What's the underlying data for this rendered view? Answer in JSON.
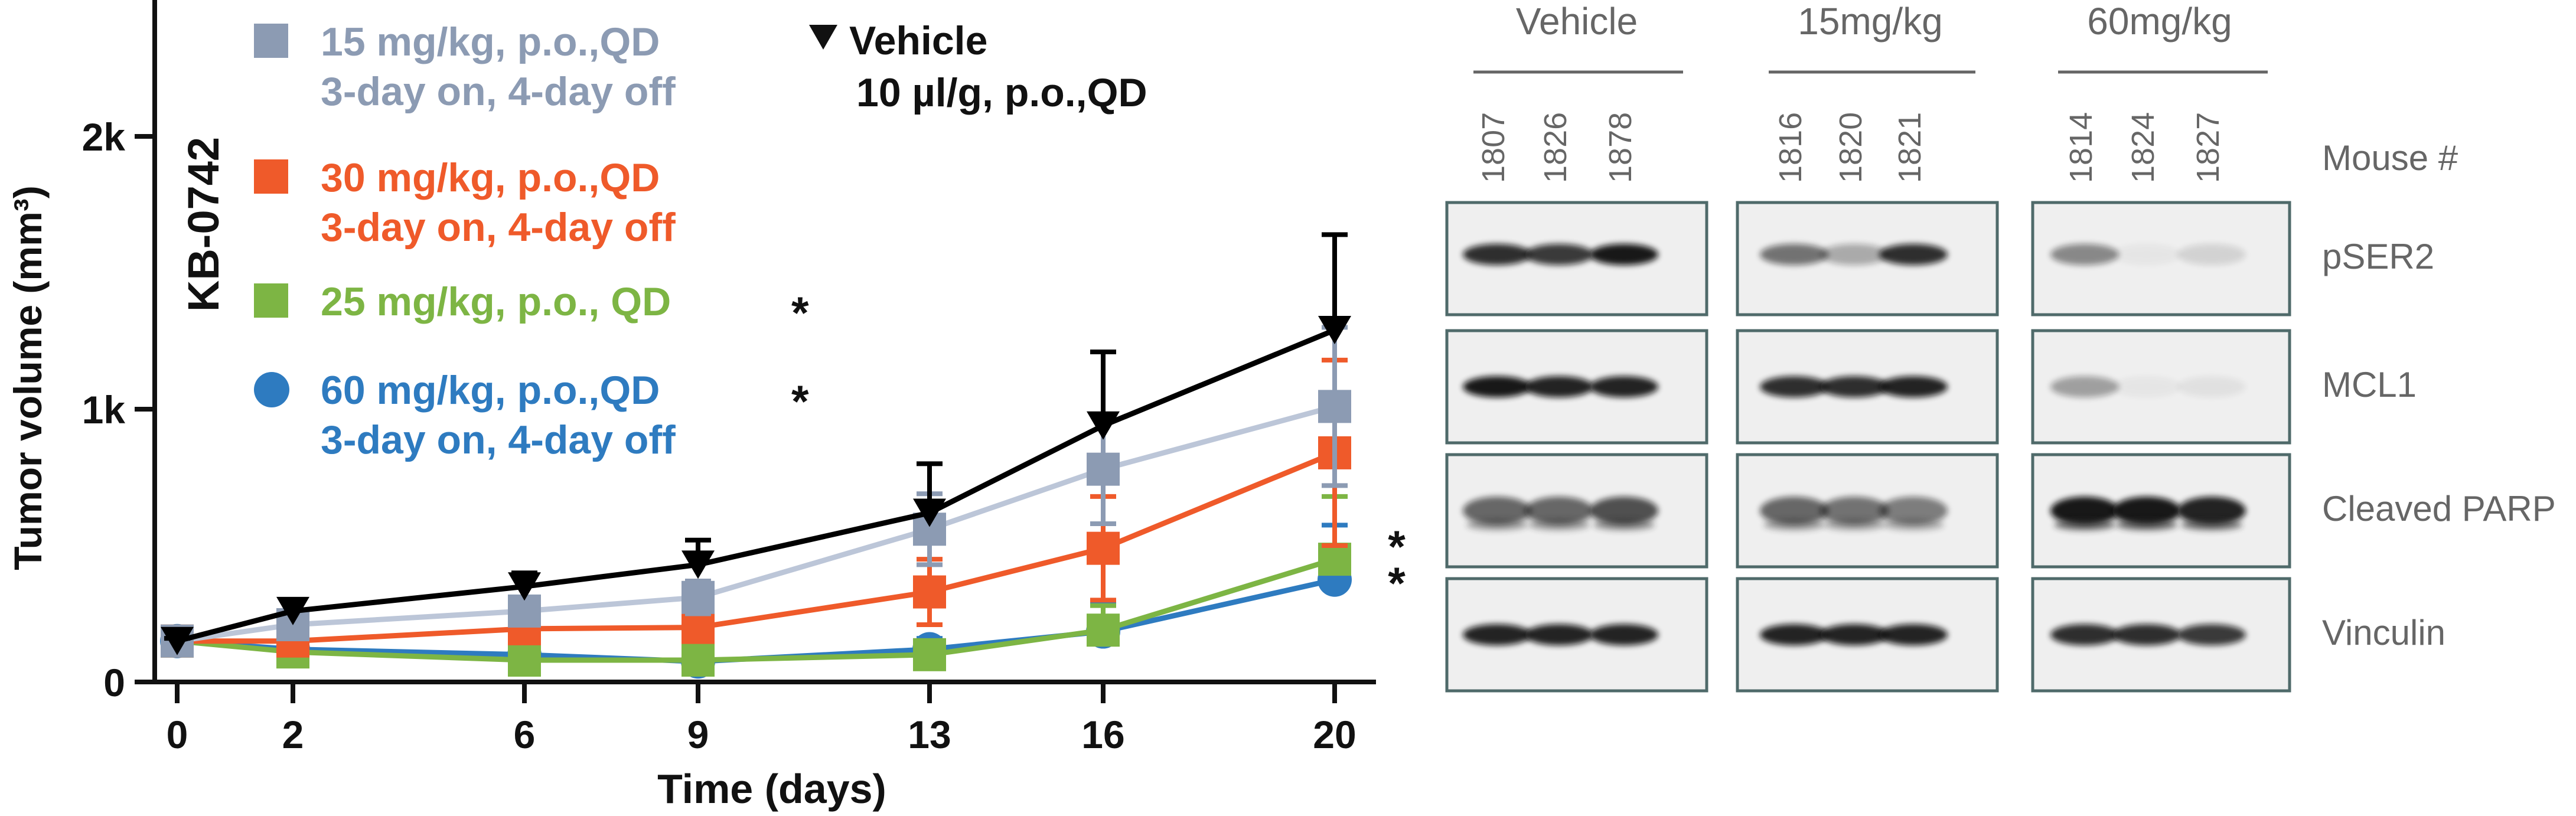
{
  "chart_data": {
    "type": "line",
    "title": "",
    "model_label": "KB-0742",
    "xlabel": "Time (days)",
    "ylabel": "Tumor volume (mm³)",
    "x": [
      0,
      2,
      6,
      9,
      13,
      16,
      20
    ],
    "x_tick_labels": [
      "0",
      "2",
      "6",
      "9",
      "13",
      "16",
      "20"
    ],
    "ylim": [
      0,
      2500
    ],
    "y_ticks": [
      0,
      1000,
      2000
    ],
    "y_tick_labels": [
      "0",
      "1k",
      "2k"
    ],
    "legend_position": "top-left",
    "series": [
      {
        "name": "Vehicle",
        "legend_line1": "Vehicle",
        "legend_line2": "10 µl/g, p.o.,QD",
        "marker": "triangle-down",
        "color": "#000000",
        "significant": false,
        "values": [
          150,
          260,
          350,
          430,
          620,
          940,
          1290
        ],
        "errors": [
          10,
          40,
          50,
          90,
          180,
          270,
          350
        ]
      },
      {
        "name": "15 mg/kg, p.o.,QD 3-day on, 4-day off",
        "legend_line1": "15 mg/kg, p.o.,QD",
        "legend_line2": "3-day on, 4-day off",
        "marker": "square",
        "color": "#8C9BB3",
        "line_color": "#BCC6D8",
        "significant": false,
        "values": [
          150,
          210,
          260,
          310,
          560,
          780,
          1010
        ],
        "errors": [
          10,
          30,
          40,
          60,
          130,
          200,
          290
        ]
      },
      {
        "name": "30 mg/kg, p.o.,QD 3-day on, 4-day off",
        "legend_line1": "30 mg/kg, p.o.,QD",
        "legend_line2": "3-day on, 4-day off",
        "marker": "square",
        "color": "#EF5A2A",
        "significant": false,
        "values": [
          150,
          150,
          195,
          200,
          330,
          490,
          840
        ],
        "errors": [
          10,
          30,
          45,
          50,
          120,
          190,
          340
        ]
      },
      {
        "name": "25 mg/kg, p.o., QD",
        "legend_line1": "25 mg/kg, p.o., QD",
        "legend_line2": "",
        "marker": "square",
        "color": "#7DB544",
        "significant": true,
        "values": [
          150,
          110,
          80,
          80,
          100,
          190,
          450
        ],
        "errors": [
          10,
          20,
          25,
          30,
          50,
          90,
          230
        ]
      },
      {
        "name": "60 mg/kg, p.o.,QD 3-day on, 4-day off",
        "legend_line1": "60 mg/kg, p.o.,QD",
        "legend_line2": "3-day on, 4-day off",
        "marker": "circle",
        "color": "#2E7BC0",
        "significant": true,
        "values": [
          150,
          120,
          100,
          75,
          120,
          185,
          375
        ],
        "errors": [
          10,
          20,
          30,
          20,
          40,
          100,
          200
        ]
      }
    ],
    "significance_marker": "*",
    "endpoint_annotations": [
      "*",
      "*"
    ]
  },
  "blot": {
    "groups": [
      {
        "label": "Vehicle",
        "mice": [
          "1807",
          "1826",
          "1878"
        ]
      },
      {
        "label": "15mg/kg",
        "mice": [
          "1816",
          "1820",
          "1821"
        ]
      },
      {
        "label": "60mg/kg",
        "mice": [
          "1814",
          "1824",
          "1827"
        ]
      }
    ],
    "mouse_label": "Mouse #",
    "rows": [
      {
        "label": "pSER2",
        "intensity": [
          [
            0.85,
            0.8,
            0.95
          ],
          [
            0.55,
            0.3,
            0.85
          ],
          [
            0.45,
            0.04,
            0.12
          ]
        ]
      },
      {
        "label": "MCL1",
        "intensity": [
          [
            0.95,
            0.9,
            0.9
          ],
          [
            0.85,
            0.85,
            0.9
          ],
          [
            0.35,
            0.04,
            0.06
          ]
        ]
      },
      {
        "label": "Cleaved PARP",
        "intensity": [
          [
            0.6,
            0.6,
            0.7
          ],
          [
            0.6,
            0.55,
            0.5
          ],
          [
            0.95,
            0.95,
            0.9
          ]
        ]
      },
      {
        "label": "Vinculin",
        "intensity": [
          [
            0.9,
            0.9,
            0.9
          ],
          [
            0.9,
            0.9,
            0.9
          ],
          [
            0.85,
            0.85,
            0.8
          ]
        ]
      }
    ]
  }
}
